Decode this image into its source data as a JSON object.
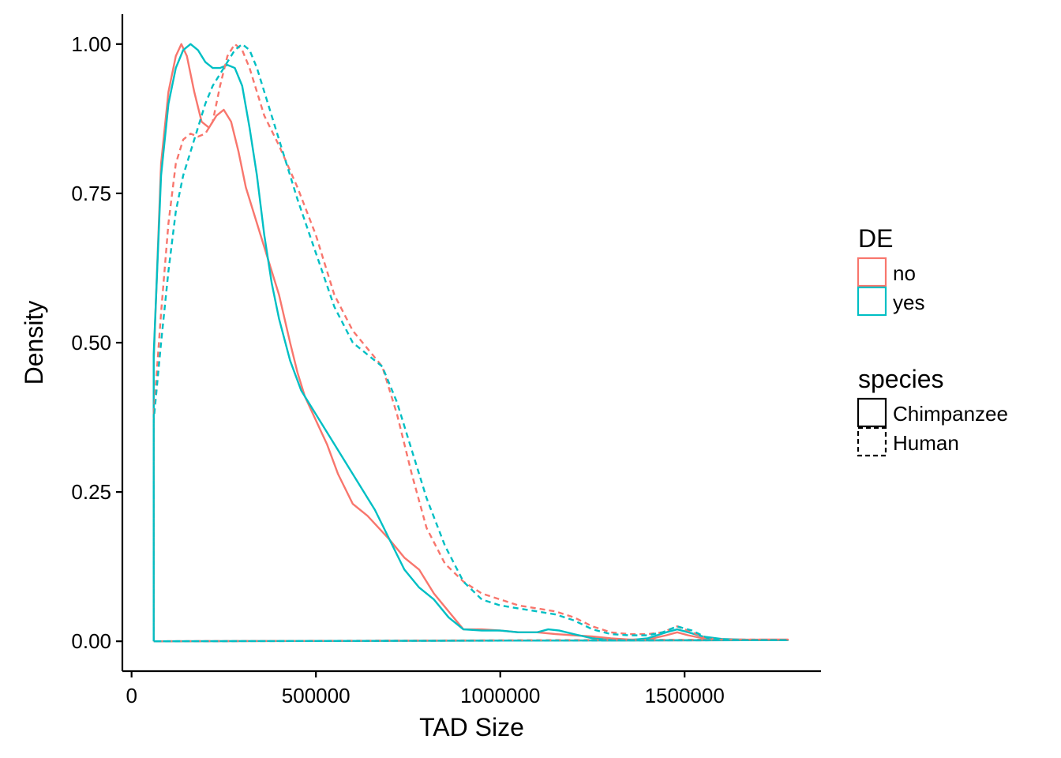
{
  "chart_data": {
    "type": "line",
    "title": "",
    "xlabel": "TAD Size",
    "ylabel": "Density",
    "xlim": [
      -25000,
      1870000
    ],
    "ylim": [
      -0.05,
      1.05
    ],
    "xticks": [
      0,
      500000,
      1000000,
      1500000
    ],
    "xtick_labels": [
      "0",
      "500000",
      "1000000",
      "1500000"
    ],
    "yticks": [
      0,
      0.25,
      0.5,
      0.75,
      1
    ],
    "ytick_labels": [
      "0.00",
      "0.25",
      "0.50",
      "0.75",
      "1.00"
    ],
    "grid": false,
    "legend_position": "right",
    "legends": [
      {
        "title": "DE",
        "items": [
          {
            "label": "no",
            "color": "#F8766D"
          },
          {
            "label": "yes",
            "color": "#00BFC4"
          }
        ]
      },
      {
        "title": "species",
        "items": [
          {
            "label": "Chimpanzee",
            "linetype": "solid"
          },
          {
            "label": "Human",
            "linetype": "dashed"
          }
        ]
      }
    ],
    "series": [
      {
        "de": "no",
        "species": "Chimpanzee",
        "color": "#F8766D",
        "dash": false,
        "x": [
          60000,
          60000,
          80000,
          100000,
          120000,
          135000,
          150000,
          170000,
          190000,
          210000,
          230000,
          250000,
          270000,
          290000,
          310000,
          330000,
          350000,
          370000,
          400000,
          430000,
          450000,
          470000,
          500000,
          530000,
          560000,
          600000,
          640000,
          670000,
          700000,
          740000,
          780000,
          820000,
          860000,
          900000,
          950000,
          1000000,
          1050000,
          1100000,
          1150000,
          1200000,
          1250000,
          1300000,
          1350000,
          1400000,
          1450000,
          1480000,
          1510000,
          1550000,
          1600000,
          1650000,
          1700000,
          1780000
        ],
        "y": [
          0,
          0.47,
          0.8,
          0.92,
          0.98,
          1.0,
          0.98,
          0.92,
          0.87,
          0.86,
          0.88,
          0.89,
          0.87,
          0.82,
          0.76,
          0.72,
          0.68,
          0.64,
          0.58,
          0.5,
          0.45,
          0.41,
          0.37,
          0.33,
          0.28,
          0.23,
          0.21,
          0.19,
          0.17,
          0.14,
          0.12,
          0.08,
          0.05,
          0.02,
          0.02,
          0.018,
          0.015,
          0.015,
          0.012,
          0.01,
          0.008,
          0.005,
          0.003,
          0.003,
          0.01,
          0.015,
          0.01,
          0.005,
          0.003,
          0.002,
          0.002,
          0.002
        ]
      },
      {
        "de": "yes",
        "species": "Chimpanzee",
        "color": "#00BFC4",
        "dash": false,
        "x": [
          60000,
          60000,
          80000,
          100000,
          120000,
          140000,
          160000,
          180000,
          200000,
          220000,
          240000,
          260000,
          280000,
          300000,
          320000,
          340000,
          360000,
          380000,
          400000,
          430000,
          460000,
          500000,
          540000,
          580000,
          620000,
          660000,
          700000,
          740000,
          780000,
          820000,
          860000,
          900000,
          950000,
          1000000,
          1050000,
          1100000,
          1130000,
          1160000,
          1200000,
          1250000,
          1300000,
          1350000,
          1400000,
          1450000,
          1480000,
          1510000,
          1550000,
          1600000,
          1650000,
          1700000,
          1780000
        ],
        "y": [
          0,
          0.48,
          0.78,
          0.9,
          0.96,
          0.99,
          1.0,
          0.99,
          0.97,
          0.96,
          0.96,
          0.965,
          0.96,
          0.93,
          0.86,
          0.78,
          0.68,
          0.6,
          0.54,
          0.47,
          0.42,
          0.38,
          0.34,
          0.3,
          0.26,
          0.22,
          0.17,
          0.12,
          0.09,
          0.07,
          0.04,
          0.02,
          0.018,
          0.018,
          0.015,
          0.015,
          0.02,
          0.018,
          0.012,
          0.005,
          0.002,
          0.002,
          0.005,
          0.015,
          0.02,
          0.015,
          0.008,
          0.004,
          0.003,
          0.002,
          0.002
        ]
      },
      {
        "de": "no",
        "species": "Human",
        "color": "#F8766D",
        "dash": true,
        "x": [
          60000,
          60000,
          80000,
          100000,
          120000,
          140000,
          160000,
          180000,
          200000,
          220000,
          240000,
          260000,
          280000,
          300000,
          320000,
          340000,
          360000,
          400000,
          450000,
          500000,
          550000,
          600000,
          640000,
          680000,
          720000,
          760000,
          800000,
          850000,
          900000,
          950000,
          1000000,
          1050000,
          1100000,
          1150000,
          1200000,
          1250000,
          1300000,
          1350000,
          1400000,
          1440000,
          1480000,
          1520000,
          1560000,
          1600000,
          1650000,
          1700000,
          1780000
        ],
        "y": [
          0,
          0.38,
          0.55,
          0.7,
          0.8,
          0.84,
          0.85,
          0.845,
          0.85,
          0.87,
          0.93,
          0.98,
          1.0,
          0.99,
          0.96,
          0.92,
          0.88,
          0.83,
          0.76,
          0.68,
          0.58,
          0.52,
          0.49,
          0.46,
          0.38,
          0.28,
          0.19,
          0.13,
          0.1,
          0.08,
          0.07,
          0.06,
          0.055,
          0.05,
          0.04,
          0.025,
          0.015,
          0.012,
          0.012,
          0.015,
          0.025,
          0.015,
          0.005,
          0.003,
          0.003,
          0.003,
          0.003
        ]
      },
      {
        "de": "yes",
        "species": "Human",
        "color": "#00BFC4",
        "dash": true,
        "x": [
          60000,
          60000,
          80000,
          100000,
          120000,
          140000,
          160000,
          180000,
          200000,
          220000,
          240000,
          260000,
          280000,
          300000,
          320000,
          340000,
          360000,
          400000,
          450000,
          500000,
          550000,
          600000,
          640000,
          680000,
          720000,
          760000,
          800000,
          850000,
          900000,
          950000,
          1000000,
          1050000,
          1100000,
          1150000,
          1200000,
          1250000,
          1300000,
          1350000,
          1400000,
          1440000,
          1480000,
          1520000,
          1560000,
          1600000,
          1650000,
          1700000,
          1780000
        ],
        "y": [
          0,
          0.37,
          0.5,
          0.62,
          0.72,
          0.78,
          0.82,
          0.86,
          0.9,
          0.93,
          0.95,
          0.97,
          0.99,
          1.0,
          0.99,
          0.96,
          0.92,
          0.84,
          0.74,
          0.65,
          0.56,
          0.5,
          0.48,
          0.46,
          0.4,
          0.32,
          0.24,
          0.16,
          0.1,
          0.07,
          0.06,
          0.055,
          0.05,
          0.045,
          0.035,
          0.02,
          0.012,
          0.01,
          0.01,
          0.015,
          0.025,
          0.018,
          0.006,
          0.003,
          0.002,
          0.002,
          0.002
        ]
      }
    ]
  }
}
